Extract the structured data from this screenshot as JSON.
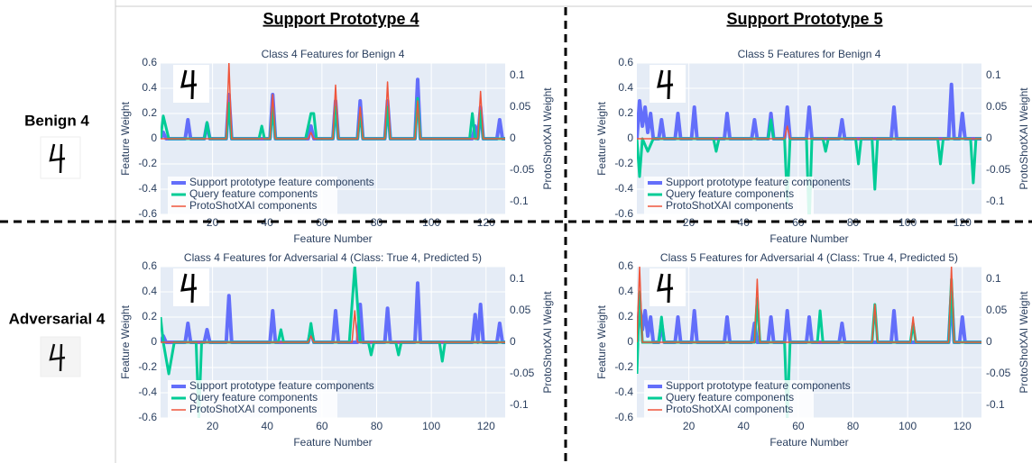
{
  "figure": {
    "columns": [
      "Support Prototype 4",
      "Support Prototype 5"
    ],
    "rows": [
      "Benign 4",
      "Adversarial 4"
    ]
  },
  "chart_data": [
    {
      "type": "line",
      "title": "Class 4 Features for Benign 4",
      "xlabel": "Feature Number",
      "ylabel": "Feature Weight",
      "y2label": "ProtoShotXAI Weight",
      "xlim": [
        1,
        127
      ],
      "ylim": [
        -0.6,
        0.6
      ],
      "y2lim": [
        -0.12,
        0.12
      ],
      "xticks": [
        20,
        40,
        60,
        80,
        100,
        120
      ],
      "yticks": [
        -0.6,
        -0.4,
        -0.2,
        0,
        0.2,
        0.4,
        0.6
      ],
      "y2ticks": [
        -0.1,
        -0.05,
        0,
        0.05,
        0.1
      ],
      "grid": true,
      "legend": "bottom-left",
      "series": [
        {
          "name": "Support prototype feature components",
          "color": "#636efa",
          "x": [
            1,
            2,
            3,
            10,
            11,
            12,
            17,
            18,
            19,
            25,
            26,
            27,
            41,
            42,
            43,
            55,
            56,
            57,
            64,
            65,
            66,
            73,
            74,
            75,
            83,
            84,
            85,
            94,
            95,
            96,
            115,
            116,
            117,
            118,
            119,
            124,
            125,
            126,
            127
          ],
          "values": [
            0,
            0.05,
            0,
            0,
            0.15,
            0,
            0,
            0.12,
            0,
            0,
            0.35,
            0,
            0,
            0.35,
            0,
            0,
            0.1,
            0,
            0,
            0.3,
            0,
            0,
            0.3,
            0,
            0,
            0.3,
            0,
            0,
            0.47,
            0,
            0,
            0.1,
            0,
            0.25,
            0,
            0,
            0.15,
            0,
            0
          ]
        },
        {
          "name": "Query feature components",
          "color": "#00cc96",
          "x": [
            1,
            2,
            4,
            17,
            18,
            19,
            25,
            26,
            27,
            37,
            38,
            39,
            41,
            42,
            43,
            54,
            56,
            57,
            58,
            64,
            65,
            66,
            73,
            74,
            75,
            83,
            84,
            85,
            94,
            95,
            96,
            114,
            115,
            116,
            117,
            118,
            119,
            127
          ],
          "values": [
            0,
            0.18,
            0,
            0,
            0.13,
            0,
            0,
            0.28,
            0,
            0,
            0.1,
            0,
            0,
            0.25,
            0,
            0,
            0.2,
            0.2,
            0,
            0,
            0.25,
            0,
            0,
            0.2,
            0,
            0,
            0.25,
            0,
            0,
            0.32,
            0,
            0,
            0.2,
            0,
            0,
            0.22,
            0,
            0
          ]
        },
        {
          "name": "ProtoShotXAI components",
          "color": "#ef553b",
          "axis": "y2",
          "x": [
            1,
            25,
            26,
            27,
            41,
            42,
            43,
            55,
            56,
            57,
            64,
            65,
            66,
            73,
            74,
            75,
            83,
            84,
            85,
            94,
            95,
            96,
            117,
            118,
            119,
            127
          ],
          "values": [
            0,
            0,
            0.12,
            0,
            0,
            0.07,
            0,
            0,
            0.01,
            0,
            0,
            0.085,
            0,
            0,
            0.05,
            0,
            0,
            0.09,
            0,
            0,
            0.06,
            0,
            0,
            0.075,
            0,
            0
          ]
        }
      ]
    },
    {
      "type": "line",
      "title": "Class 5 Features for Benign 4",
      "xlabel": "Feature Number",
      "ylabel": "Feature Weight",
      "y2label": "ProtoShotXAI Weight",
      "xlim": [
        1,
        127
      ],
      "ylim": [
        -0.6,
        0.6
      ],
      "y2lim": [
        -0.12,
        0.12
      ],
      "xticks": [
        20,
        40,
        60,
        80,
        100,
        120
      ],
      "yticks": [
        -0.6,
        -0.4,
        -0.2,
        0,
        0.2,
        0.4,
        0.6
      ],
      "y2ticks": [
        -0.1,
        -0.05,
        0,
        0.05,
        0.1
      ],
      "grid": true,
      "legend": "bottom-left",
      "series": [
        {
          "name": "Support prototype feature components",
          "color": "#636efa",
          "x": [
            1,
            2,
            3,
            4,
            5,
            6,
            7,
            9,
            10,
            11,
            15,
            16,
            17,
            21,
            22,
            23,
            33,
            34,
            35,
            43,
            44,
            45,
            49,
            50,
            51,
            55,
            56,
            57,
            63,
            64,
            65,
            75,
            76,
            77,
            94,
            95,
            96,
            115,
            116,
            117,
            119,
            120,
            121,
            127
          ],
          "values": [
            0,
            0.3,
            0.1,
            0.25,
            0.05,
            0.2,
            0,
            0,
            0.15,
            0,
            0,
            0.2,
            0,
            0,
            0.25,
            0,
            0,
            0.2,
            0,
            0,
            0.15,
            0,
            0,
            0.2,
            0,
            0,
            0.25,
            0,
            0,
            0.25,
            0,
            0,
            0.15,
            0,
            0,
            0.25,
            0,
            0,
            0.43,
            0,
            0,
            0.2,
            0,
            0
          ]
        },
        {
          "name": "Query feature components",
          "color": "#00cc96",
          "x": [
            1,
            2,
            3,
            5,
            7,
            29,
            30,
            31,
            49,
            50,
            51,
            55,
            56,
            57,
            63,
            64,
            65,
            69,
            70,
            71,
            81,
            82,
            83,
            87,
            88,
            89,
            111,
            112,
            113,
            123,
            124,
            125,
            127
          ],
          "values": [
            0,
            -0.3,
            0,
            -0.1,
            0,
            0,
            -0.1,
            0,
            0,
            0.15,
            0,
            0,
            -0.5,
            0,
            0,
            -0.7,
            0,
            0,
            -0.1,
            0,
            0,
            -0.2,
            0,
            0,
            -0.4,
            0,
            0,
            -0.2,
            0,
            0,
            -0.35,
            0,
            0
          ]
        },
        {
          "name": "ProtoShotXAI components",
          "color": "#ef553b",
          "axis": "y2",
          "x": [
            1,
            55,
            56,
            57,
            127
          ],
          "values": [
            0,
            0,
            0.02,
            0,
            0
          ]
        }
      ]
    },
    {
      "type": "line",
      "title": "Class 4 Features for Adversarial 4 (Class: True 4, Predicted 5)",
      "xlabel": "Feature Number",
      "ylabel": "Feature Weight",
      "y2label": "ProtoShotXAI Weight",
      "xlim": [
        1,
        127
      ],
      "ylim": [
        -0.6,
        0.6
      ],
      "y2lim": [
        -0.12,
        0.12
      ],
      "xticks": [
        20,
        40,
        60,
        80,
        100,
        120
      ],
      "yticks": [
        -0.6,
        -0.4,
        -0.2,
        0,
        0.2,
        0.4,
        0.6
      ],
      "y2ticks": [
        -0.1,
        -0.05,
        0,
        0.05,
        0.1
      ],
      "grid": true,
      "legend": "bottom-left",
      "series": [
        {
          "name": "Support prototype feature components",
          "color": "#636efa",
          "x": [
            1,
            2,
            3,
            10,
            11,
            12,
            17,
            18,
            19,
            25,
            26,
            27,
            41,
            42,
            43,
            55,
            56,
            57,
            64,
            65,
            66,
            73,
            74,
            75,
            83,
            84,
            85,
            94,
            95,
            96,
            115,
            116,
            117,
            118,
            119,
            124,
            125,
            126,
            127
          ],
          "values": [
            0,
            0.05,
            0,
            0,
            0.15,
            0,
            0,
            0.1,
            0,
            0,
            0.37,
            0,
            0,
            0.25,
            0,
            0,
            0.1,
            0,
            0,
            0.25,
            0,
            0,
            0.3,
            0,
            0,
            0.27,
            0,
            0,
            0.47,
            0,
            0,
            0.22,
            0,
            0.3,
            0,
            0,
            0.15,
            0,
            0
          ]
        },
        {
          "name": "Query feature components",
          "color": "#00cc96",
          "x": [
            1,
            2,
            4,
            6,
            14,
            15,
            16,
            44,
            45,
            46,
            55,
            56,
            57,
            70,
            72,
            74,
            77,
            78,
            79,
            87,
            88,
            89,
            103,
            104,
            105,
            127
          ],
          "values": [
            0.2,
            0,
            -0.25,
            0,
            0,
            -0.6,
            0,
            0,
            0.1,
            0,
            0,
            0.15,
            0,
            0,
            0.6,
            0,
            0,
            -0.1,
            0,
            0,
            -0.1,
            0,
            0,
            -0.15,
            0,
            0
          ]
        },
        {
          "name": "ProtoShotXAI components",
          "color": "#ef553b",
          "axis": "y2",
          "x": [
            1,
            55,
            56,
            57,
            71,
            72,
            73,
            127
          ],
          "values": [
            0,
            0,
            0.01,
            0,
            0,
            0.05,
            0,
            0
          ]
        }
      ]
    },
    {
      "type": "line",
      "title": "Class 5 Features for Adversarial 4 (Class: True 4, Predicted 5)",
      "xlabel": "Feature Number",
      "ylabel": "Feature Weight",
      "y2label": "ProtoShotXAI Weight",
      "xlim": [
        1,
        127
      ],
      "ylim": [
        -0.6,
        0.6
      ],
      "y2lim": [
        -0.12,
        0.12
      ],
      "xticks": [
        20,
        40,
        60,
        80,
        100,
        120
      ],
      "yticks": [
        -0.6,
        -0.4,
        -0.2,
        0,
        0.2,
        0.4,
        0.6
      ],
      "y2ticks": [
        -0.1,
        -0.05,
        0,
        0.05,
        0.1
      ],
      "grid": true,
      "legend": "bottom-left",
      "series": [
        {
          "name": "Support prototype feature components",
          "color": "#636efa",
          "x": [
            1,
            2,
            3,
            4,
            5,
            6,
            7,
            9,
            10,
            11,
            15,
            16,
            17,
            21,
            22,
            23,
            33,
            34,
            35,
            43,
            44,
            45,
            49,
            50,
            51,
            55,
            56,
            57,
            63,
            64,
            65,
            75,
            76,
            77,
            94,
            95,
            96,
            115,
            116,
            117,
            119,
            120,
            121,
            127
          ],
          "values": [
            0,
            0.3,
            0.1,
            0.25,
            0.05,
            0.2,
            0,
            0,
            0.15,
            0,
            0,
            0.2,
            0,
            0,
            0.25,
            0,
            0,
            0.2,
            0,
            0,
            0.15,
            0,
            0,
            0.2,
            0,
            0,
            0.25,
            0,
            0,
            0.2,
            0,
            0,
            0.15,
            0,
            0,
            0.25,
            0,
            0,
            0.4,
            0,
            0,
            0.2,
            0,
            0
          ]
        },
        {
          "name": "Query feature components",
          "color": "#00cc96",
          "x": [
            1,
            2,
            3,
            9,
            10,
            11,
            44,
            45,
            46,
            55,
            56,
            57,
            67,
            68,
            69,
            87,
            88,
            89,
            101,
            102,
            103,
            115,
            116,
            117,
            127
          ],
          "values": [
            -0.25,
            0.4,
            0,
            0,
            0.2,
            0,
            0,
            0.35,
            0,
            0,
            -0.6,
            0,
            0,
            0.25,
            0,
            0,
            0.3,
            0,
            0,
            0.15,
            0,
            0,
            0.5,
            0,
            0
          ]
        },
        {
          "name": "ProtoShotXAI components",
          "color": "#ef553b",
          "axis": "y2",
          "x": [
            1,
            2,
            3,
            44,
            45,
            46,
            87,
            88,
            89,
            101,
            102,
            103,
            115,
            116,
            117,
            127
          ],
          "values": [
            0,
            0.12,
            0,
            0,
            0.1,
            0,
            0,
            0.06,
            0,
            0,
            0.04,
            0,
            0,
            0.12,
            0,
            0
          ]
        }
      ]
    }
  ]
}
